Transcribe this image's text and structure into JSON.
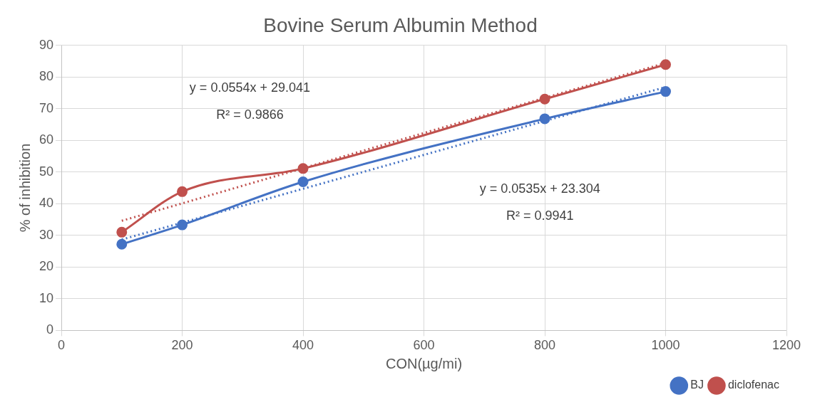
{
  "chart_data": {
    "type": "line",
    "title": "Bovine Serum Albumin Method",
    "xlabel": "CON(µg/mi)",
    "ylabel": "% of inhibition",
    "x": [
      100,
      200,
      400,
      800,
      1000
    ],
    "series": [
      {
        "name": "BJ",
        "color": "#4472c4",
        "values": [
          27.2,
          33.3,
          46.9,
          66.8,
          75.4
        ]
      },
      {
        "name": "diclofenac",
        "color": "#c0504d",
        "values": [
          31.0,
          43.8,
          51.1,
          73.0,
          83.9
        ]
      },
      {
        "type": "line",
        "color": "#4472c4",
        "values": [
          28.7,
          34.0,
          44.7,
          66.1,
          76.8
        ],
        "marker": "none",
        "line_style": "dotted"
      },
      {
        "type": "line",
        "color": "#c0504d",
        "values": [
          34.6,
          40.1,
          51.2,
          73.4,
          84.4
        ],
        "marker": "none",
        "line_style": "dotted"
      }
    ],
    "xlim": [
      0,
      1200
    ],
    "xticks": [
      0,
      200,
      400,
      600,
      800,
      1000,
      1200
    ],
    "ylim": [
      0,
      90
    ],
    "yticks": [
      0,
      10,
      20,
      30,
      40,
      50,
      60,
      70,
      80,
      90
    ],
    "grid": true,
    "legend": "bottom right",
    "marker": "circle",
    "line_style": "solid",
    "annotations": [
      "y = 0.0554x + 29.041",
      "R² = 0.9866",
      "y = 0.0535x + 23.304",
      "R² = 0.9941"
    ]
  }
}
